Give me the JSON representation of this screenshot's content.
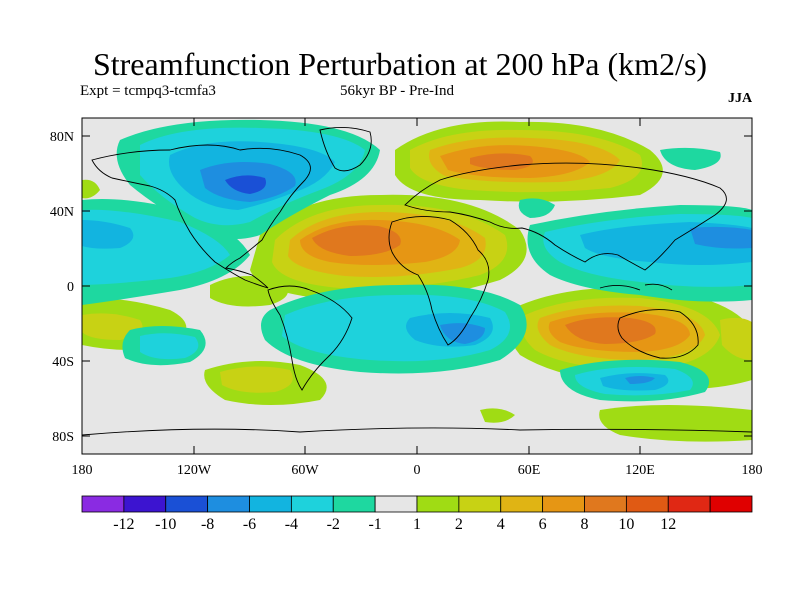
{
  "title": "Streamfunction Perturbation at 200 hPa (km2/s)",
  "expt_label": "Expt = tcmpq3-tcmfa3",
  "period_label": "56kyr BP - Pre-Ind",
  "season_label": "JJA",
  "lat_ticks": [
    "80N",
    "40N",
    "0",
    "40S",
    "80S"
  ],
  "lon_ticks": [
    "180",
    "120W",
    "60W",
    "0",
    "60E",
    "120E",
    "180"
  ],
  "colorbar": {
    "labels": [
      "-12",
      "-10",
      "-8",
      "-6",
      "-4",
      "-2",
      "-1",
      "1",
      "2",
      "4",
      "6",
      "8",
      "10",
      "12"
    ],
    "colors": [
      "#8a2be2",
      "#3c14d0",
      "#1a50d6",
      "#1e8ee0",
      "#12b4e0",
      "#1ed2dc",
      "#1ed8a0",
      "#e6e6e6",
      "#a0dc14",
      "#c8d214",
      "#e0b414",
      "#e69614",
      "#e0781e",
      "#e05a14",
      "#e02814",
      "#e00000"
    ]
  },
  "field_colors": {
    "background": "#e6e6e6",
    "neg1": "#1ed8a0",
    "neg2": "#1ed2dc",
    "neg3": "#12b4e0",
    "neg4": "#1e8ee0",
    "neg5": "#1a50d6",
    "pos1": "#a0dc14",
    "pos2": "#c8d214",
    "pos3": "#e0b414",
    "pos4": "#e69614",
    "pos5": "#e0781e"
  }
}
